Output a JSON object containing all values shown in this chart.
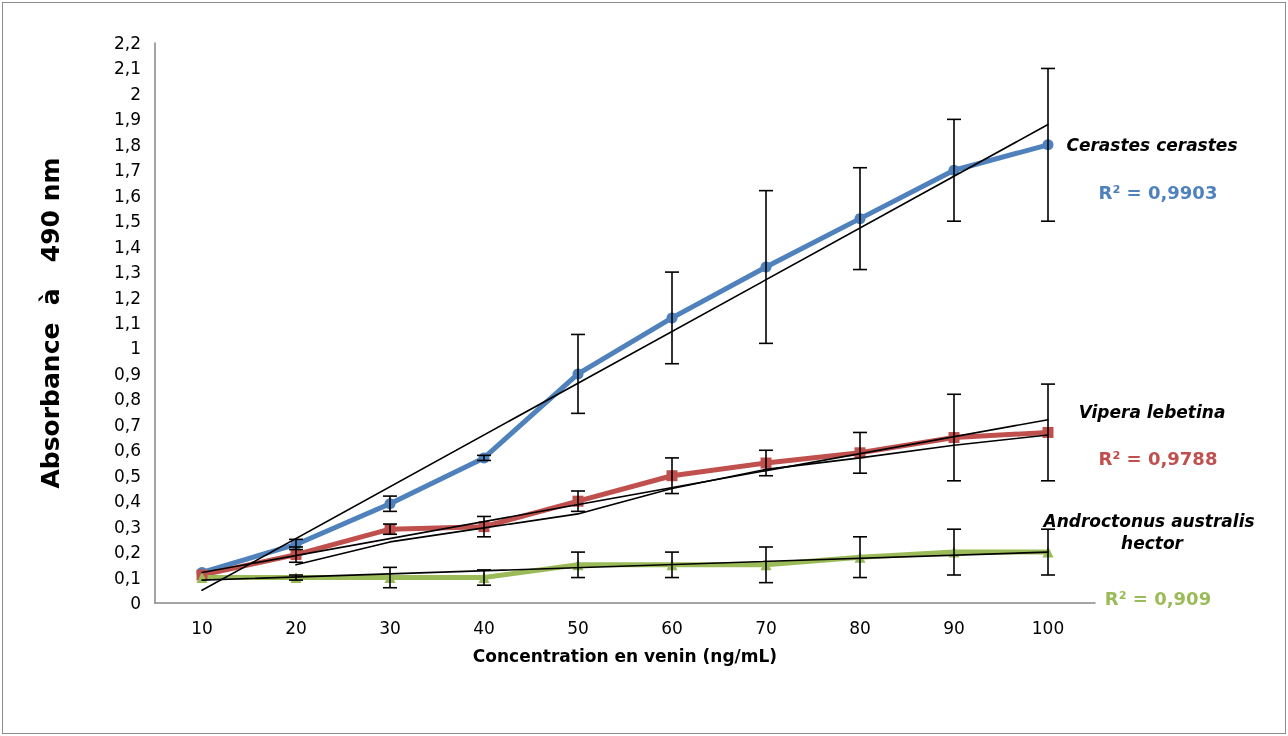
{
  "chart_data": {
    "type": "line",
    "xlabel": "Concentration en venin (ng/mL)",
    "ylabel": "Absorbance  à   490 nm",
    "categories": [
      "10",
      "20",
      "30",
      "40",
      "50",
      "60",
      "70",
      "80",
      "90",
      "100"
    ],
    "ylim": [
      0,
      2.2
    ],
    "yticks": [
      0,
      {
        "value": 0.1,
        "label": "0,1"
      },
      {
        "value": 0.2,
        "label": "0,2"
      },
      {
        "value": 0.3,
        "label": "0,3"
      },
      {
        "value": 0.4,
        "label": "0,4"
      },
      {
        "value": 0.5,
        "label": "0,5"
      },
      {
        "value": 0.6,
        "label": "0,6"
      },
      {
        "value": 0.7,
        "label": "0,7"
      },
      {
        "value": 0.8,
        "label": "0,8"
      },
      {
        "value": 0.9,
        "label": "0,9"
      },
      1,
      {
        "value": 1.1,
        "label": "1,1"
      },
      {
        "value": 1.2,
        "label": "1,2"
      },
      {
        "value": 1.3,
        "label": "1,3"
      },
      {
        "value": 1.4,
        "label": "1,4"
      },
      {
        "value": 1.5,
        "label": "1,5"
      },
      {
        "value": 1.6,
        "label": "1,6"
      },
      {
        "value": 1.7,
        "label": "1,7"
      },
      {
        "value": 1.8,
        "label": "1,8"
      },
      {
        "value": 1.9,
        "label": "1,9"
      },
      2,
      {
        "value": 2.1,
        "label": "2,1"
      },
      {
        "value": 2.2,
        "label": "2,2"
      }
    ],
    "series": [
      {
        "name": "Cerastes cerastes",
        "color": "#4f81bd",
        "marker": "circle",
        "values": [
          0.12,
          0.23,
          0.39,
          0.57,
          0.9,
          1.12,
          1.32,
          1.51,
          1.7,
          1.8
        ],
        "errors": [
          null,
          0.02,
          0.03,
          0.01,
          0.155,
          0.18,
          0.3,
          0.2,
          0.2,
          0.3
        ]
      },
      {
        "name": "Vipera lebetina",
        "color": "#c0504d",
        "marker": "square",
        "values": [
          0.11,
          0.19,
          0.29,
          0.3,
          0.4,
          0.5,
          0.55,
          0.59,
          0.65,
          0.67
        ],
        "errors": [
          null,
          0.03,
          0.02,
          0.04,
          0.04,
          0.07,
          0.05,
          0.08,
          0.17,
          0.19
        ]
      },
      {
        "name": "Androctonus australis hector",
        "color": "#9bbb59",
        "marker": "triangle",
        "values": [
          0.1,
          0.1,
          0.1,
          0.1,
          0.15,
          0.15,
          0.15,
          0.18,
          0.2,
          0.2
        ],
        "errors": [
          null,
          0.01,
          0.04,
          0.03,
          0.05,
          0.05,
          0.07,
          0.08,
          0.09,
          0.09
        ]
      },
      {
        "type": "line",
        "color": "#000000",
        "marker": "none",
        "x": [
          "10",
          "100"
        ],
        "values": [
          0.05,
          1.88
        ]
      },
      {
        "type": "line",
        "color": "#000000",
        "marker": "none",
        "x": [
          "10",
          "100"
        ],
        "values": [
          0.12,
          0.72
        ]
      },
      {
        "type": "line",
        "color": "#000000",
        "marker": "none",
        "x": [
          "20",
          "30",
          "40",
          "50",
          "60",
          "70",
          "80",
          "90",
          "100"
        ],
        "values": [
          0.15,
          0.24,
          0.295,
          0.35,
          0.45,
          0.525,
          0.57,
          0.62,
          0.66
        ]
      },
      {
        "type": "line",
        "color": "#000000",
        "marker": "none",
        "x": [
          "10",
          "100"
        ],
        "values": [
          0.09,
          0.2
        ]
      }
    ],
    "annotations": [
      "R² = 0,9903",
      "R² = 0,9788",
      "R² = 0,909"
    ]
  }
}
